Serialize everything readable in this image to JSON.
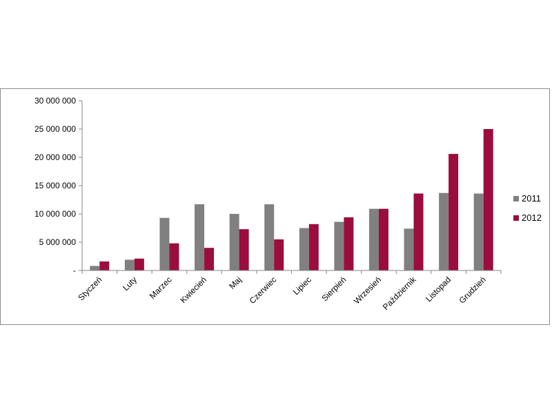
{
  "chart_data": {
    "type": "bar",
    "categories": [
      "Styczeń",
      "Luty",
      "Marzec",
      "Kwiecień",
      "Maj",
      "Czerwiec",
      "Lipiec",
      "Sierpień",
      "Wrzesień",
      "Październik",
      "Listopad",
      "Grudzień"
    ],
    "series": [
      {
        "name": "2011",
        "color": "#808080",
        "values": [
          800000,
          1900000,
          9300000,
          11700000,
          10000000,
          11700000,
          7500000,
          8600000,
          10900000,
          7400000,
          13700000,
          13600000
        ]
      },
      {
        "name": "2012",
        "color": "#9b0d3e",
        "values": [
          1600000,
          2100000,
          4800000,
          4000000,
          7300000,
          5500000,
          8200000,
          9400000,
          10900000,
          13600000,
          20600000,
          25000000
        ]
      }
    ],
    "y_ticks": [
      {
        "value": 0,
        "label": "-"
      },
      {
        "value": 5000000,
        "label": "5 000 000"
      },
      {
        "value": 10000000,
        "label": "10 000 000"
      },
      {
        "value": 15000000,
        "label": "15 000 000"
      },
      {
        "value": 20000000,
        "label": "20 000 000"
      },
      {
        "value": 25000000,
        "label": "25 000 000"
      },
      {
        "value": 30000000,
        "label": "30 000 000"
      }
    ],
    "ylim": [
      0,
      30000000
    ],
    "grid": false,
    "legend_position": "right",
    "axis_color": "#868686"
  }
}
